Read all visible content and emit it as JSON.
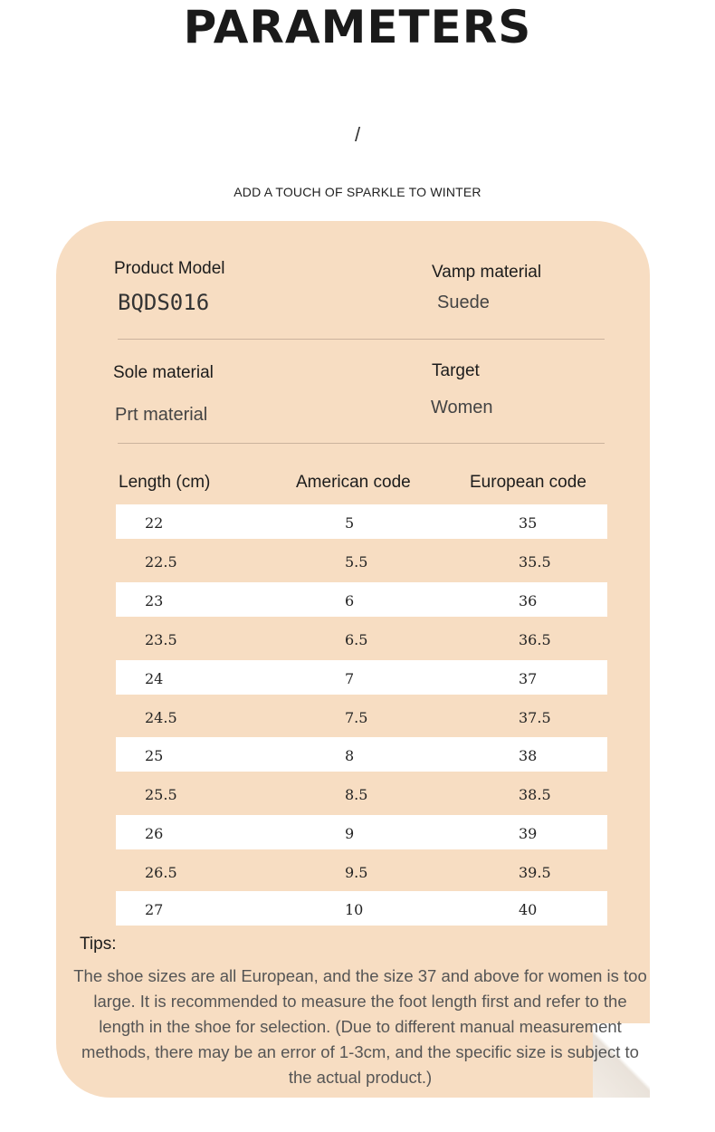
{
  "header": {
    "title": "PARAMETERS",
    "divider": "/",
    "tagline": "ADD A TOUCH OF SPARKLE TO WINTER"
  },
  "specs": {
    "product_model": {
      "label": "Product Model",
      "value": "BQDS016"
    },
    "vamp_material": {
      "label": "Vamp material",
      "value": "Suede"
    },
    "sole_material": {
      "label": "Sole material",
      "value": "Prt material"
    },
    "target": {
      "label": "Target",
      "value": "Women"
    }
  },
  "size_table": {
    "columns": [
      "Length (cm)",
      "American code",
      "European code"
    ],
    "rows": [
      [
        "22",
        "5",
        "35"
      ],
      [
        "22.5",
        "5.5",
        "35.5"
      ],
      [
        "23",
        "6",
        "36"
      ],
      [
        "23.5",
        "6.5",
        "36.5"
      ],
      [
        "24",
        "7",
        "37"
      ],
      [
        "24.5",
        "7.5",
        "37.5"
      ],
      [
        "25",
        "8",
        "38"
      ],
      [
        "25.5",
        "8.5",
        "38.5"
      ],
      [
        "26",
        "9",
        "39"
      ],
      [
        "26.5",
        "9.5",
        "39.5"
      ],
      [
        "27",
        "10",
        "40"
      ]
    ]
  },
  "tips": {
    "label": "Tips:",
    "text": "The shoe sizes are all European, and the size 37 and above for women is too large. It is recommended to measure the foot length first and refer to the length in the shoe for selection. (Due to different manual measurement methods, there may be an error of 1-3cm, and the specific size is subject to the actual product.)"
  },
  "colors": {
    "card_background": "#f7ddc2",
    "row_highlight": "#ffffff"
  }
}
